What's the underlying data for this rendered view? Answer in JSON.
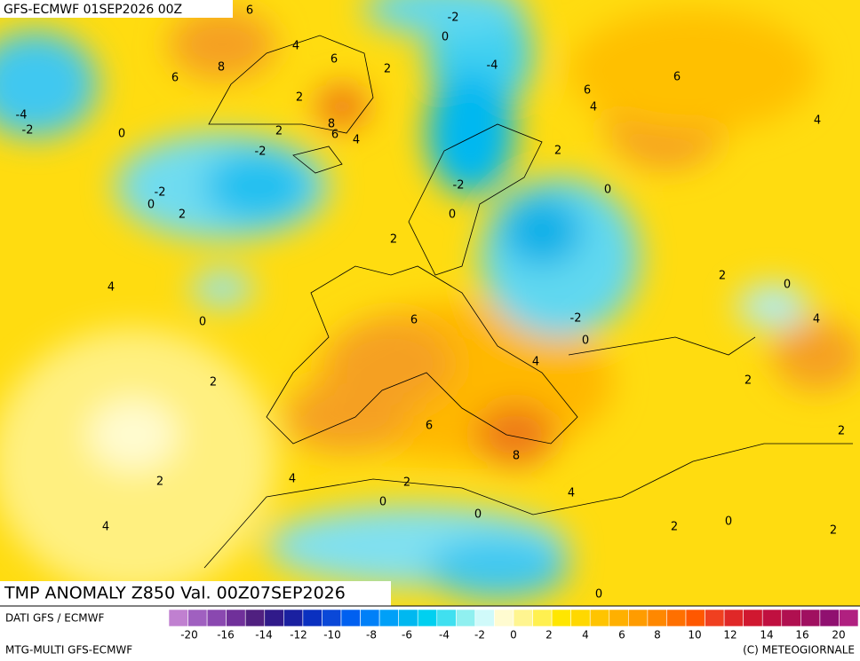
{
  "header": {
    "title": "GFS-ECMWF 01SEP2026 00Z"
  },
  "map": {
    "contour_labels": [
      6,
      -2,
      0,
      4,
      8,
      6,
      2,
      -4,
      6,
      6,
      6,
      2,
      4,
      -4,
      -2,
      0,
      8,
      6,
      2,
      4,
      4,
      -2,
      2,
      -2,
      0,
      -2,
      0,
      2,
      0,
      2,
      4,
      2,
      0,
      6,
      0,
      -2,
      4,
      0,
      4,
      2,
      2,
      6,
      2,
      8,
      2,
      4,
      2,
      4,
      0,
      0,
      4,
      0,
      2,
      2,
      0
    ]
  },
  "footer": {
    "title": "TMP ANOMALY Z850 Val. 00Z07SEP2026",
    "source": "DATI GFS / ECMWF",
    "model": "MTG-MULTI GFS-ECMWF",
    "credit": "(C) METEOGIORNALE"
  },
  "colorbar": {
    "ticks": [
      -20,
      -16,
      -14,
      -12,
      -10,
      -8,
      -6,
      -4,
      -2,
      0,
      2,
      4,
      6,
      8,
      10,
      12,
      14,
      16,
      20
    ]
  }
}
